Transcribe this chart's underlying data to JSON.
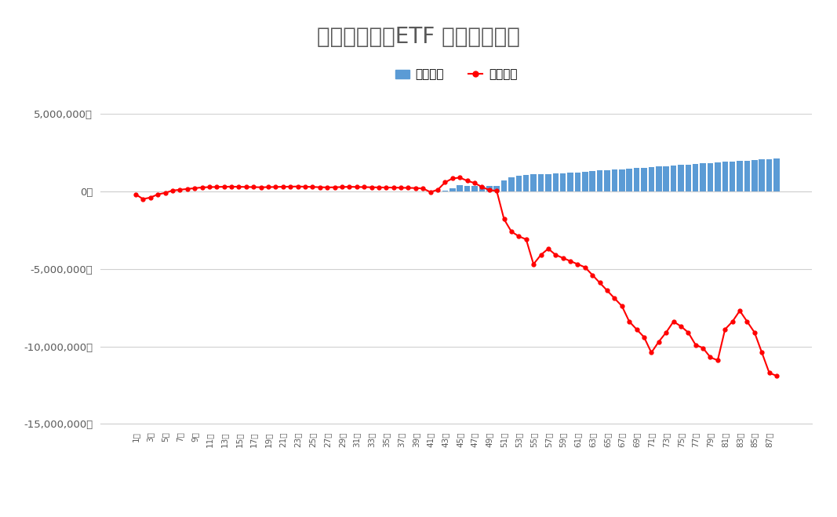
{
  "title": "トライオートETF 週別運用実績",
  "legend_labels": [
    "実現損益",
    "評価損益"
  ],
  "bar_color": "#5b9bd5",
  "line_color": "#ff0000",
  "weeks": 88,
  "realized_gains": [
    0,
    0,
    0,
    0,
    0,
    0,
    0,
    0,
    0,
    0,
    0,
    0,
    0,
    0,
    0,
    0,
    0,
    0,
    0,
    0,
    0,
    0,
    0,
    0,
    0,
    0,
    0,
    0,
    0,
    0,
    0,
    0,
    0,
    0,
    0,
    0,
    0,
    0,
    0,
    0,
    0,
    0,
    50000,
    200000,
    400000,
    350000,
    350000,
    350000,
    350000,
    350000,
    700000,
    900000,
    1000000,
    1050000,
    1100000,
    1100000,
    1100000,
    1150000,
    1150000,
    1200000,
    1200000,
    1250000,
    1300000,
    1350000,
    1350000,
    1400000,
    1400000,
    1450000,
    1500000,
    1500000,
    1550000,
    1600000,
    1600000,
    1650000,
    1700000,
    1700000,
    1750000,
    1800000,
    1800000,
    1850000,
    1900000,
    1900000,
    1950000,
    1950000,
    2000000,
    2050000,
    2050000,
    2100000
  ],
  "unrealized_gains": [
    -200000,
    -500000,
    -400000,
    -200000,
    -100000,
    50000,
    100000,
    150000,
    200000,
    250000,
    270000,
    280000,
    290000,
    300000,
    290000,
    280000,
    270000,
    260000,
    270000,
    280000,
    290000,
    300000,
    310000,
    295000,
    280000,
    265000,
    250000,
    260000,
    275000,
    290000,
    280000,
    270000,
    260000,
    250000,
    245000,
    240000,
    230000,
    220000,
    210000,
    180000,
    -50000,
    100000,
    580000,
    830000,
    880000,
    680000,
    530000,
    280000,
    80000,
    30000,
    -1800000,
    -2600000,
    -2900000,
    -3100000,
    -4700000,
    -4100000,
    -3700000,
    -4100000,
    -4300000,
    -4500000,
    -4700000,
    -4900000,
    -5400000,
    -5900000,
    -6400000,
    -6900000,
    -7400000,
    -8400000,
    -8900000,
    -9400000,
    -10400000,
    -9700000,
    -9100000,
    -8400000,
    -8700000,
    -9100000,
    -9900000,
    -10100000,
    -10700000,
    -10900000,
    -8900000,
    -8400000,
    -7700000,
    -8400000,
    -9100000,
    -10400000,
    -11700000,
    -11900000
  ],
  "ylim_min": -15000000,
  "ylim_max": 5000000,
  "yticks": [
    -15000000,
    -10000000,
    -5000000,
    0,
    5000000
  ],
  "background_color": "#ffffff",
  "grid_color": "#d0d0d0",
  "title_color": "#595959",
  "axis_color": "#595959"
}
